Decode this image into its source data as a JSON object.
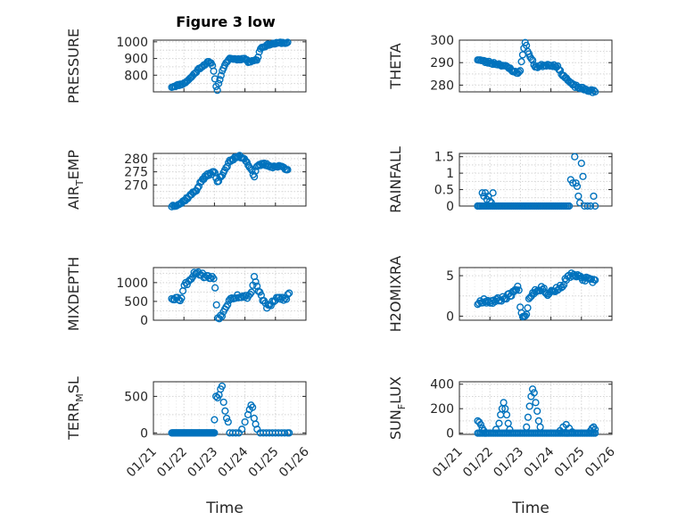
{
  "figure_title": "Figure 3 low",
  "x_axis_label": "Time",
  "marker_color": "#0072bd",
  "chart_data": [
    {
      "type": "scatter",
      "title": "Figure 3 low",
      "ylabel": {
        "text": "PRESSURE"
      },
      "xlim": [
        21,
        26
      ],
      "ylim": [
        700,
        1010
      ],
      "yticks": [
        800,
        900,
        1000
      ],
      "yticklabels": [
        "800",
        "900",
        "1000"
      ],
      "xticks": [],
      "xticklabels": [],
      "grid": true,
      "anchors": [
        [
          21.6,
          730
        ],
        [
          21.8,
          740
        ],
        [
          22.0,
          750
        ],
        [
          22.2,
          780
        ],
        [
          22.5,
          840
        ],
        [
          22.8,
          880
        ],
        [
          22.95,
          860
        ],
        [
          23.0,
          790
        ],
        [
          23.05,
          740
        ],
        [
          23.1,
          710
        ],
        [
          23.15,
          760
        ],
        [
          23.25,
          820
        ],
        [
          23.4,
          880
        ],
        [
          23.5,
          900
        ],
        [
          23.8,
          895
        ],
        [
          24.0,
          900
        ],
        [
          24.1,
          880
        ],
        [
          24.3,
          890
        ],
        [
          24.4,
          890
        ],
        [
          24.5,
          960
        ],
        [
          24.6,
          970
        ],
        [
          24.8,
          985
        ],
        [
          25.0,
          990
        ],
        [
          25.2,
          995
        ],
        [
          25.4,
          993
        ]
      ],
      "n": 95,
      "noise": 5,
      "seed": 11
    },
    {
      "type": "scatter",
      "ylabel": {
        "text": "THETA"
      },
      "xlim": [
        21,
        26
      ],
      "ylim": [
        277,
        300
      ],
      "yticks": [
        280,
        290,
        300
      ],
      "yticklabels": [
        "280",
        "290",
        "300"
      ],
      "xticks": [],
      "xticklabels": [],
      "grid": true,
      "anchors": [
        [
          21.6,
          291.5
        ],
        [
          21.8,
          290.5
        ],
        [
          22.0,
          290
        ],
        [
          22.4,
          289
        ],
        [
          22.7,
          287
        ],
        [
          22.9,
          285
        ],
        [
          23.0,
          287
        ],
        [
          23.1,
          296
        ],
        [
          23.15,
          299
        ],
        [
          23.2,
          297
        ],
        [
          23.3,
          293
        ],
        [
          23.5,
          288
        ],
        [
          23.8,
          289
        ],
        [
          24.0,
          289
        ],
        [
          24.2,
          288.5
        ],
        [
          24.3,
          286
        ],
        [
          24.5,
          283
        ],
        [
          24.7,
          280
        ],
        [
          25.0,
          278.5
        ],
        [
          25.3,
          277.5
        ],
        [
          25.45,
          277
        ]
      ],
      "n": 95,
      "noise": 0.6,
      "seed": 23
    },
    {
      "type": "scatter",
      "ylabel": {
        "text": "AIR",
        "sub": "T",
        "text2": "EMP"
      },
      "xlim": [
        21,
        26
      ],
      "ylim": [
        262,
        282
      ],
      "yticks": [
        270,
        275,
        280
      ],
      "yticklabels": [
        "270",
        "275",
        "280"
      ],
      "xticks": [],
      "xticklabels": [],
      "grid": true,
      "anchors": [
        [
          21.6,
          262
        ],
        [
          21.9,
          263
        ],
        [
          22.1,
          265
        ],
        [
          22.4,
          268
        ],
        [
          22.6,
          272
        ],
        [
          22.8,
          274
        ],
        [
          23.0,
          275
        ],
        [
          23.05,
          273
        ],
        [
          23.1,
          271
        ],
        [
          23.3,
          275
        ],
        [
          23.5,
          279
        ],
        [
          23.8,
          281
        ],
        [
          24.0,
          280
        ],
        [
          24.1,
          278
        ],
        [
          24.25,
          275
        ],
        [
          24.3,
          273
        ],
        [
          24.4,
          277
        ],
        [
          24.6,
          278
        ],
        [
          24.9,
          277
        ],
        [
          25.2,
          277
        ],
        [
          25.4,
          276
        ]
      ],
      "n": 95,
      "noise": 0.5,
      "seed": 37
    },
    {
      "type": "scatter",
      "ylabel": {
        "text": "RAINFALL"
      },
      "xlim": [
        21,
        26
      ],
      "ylim": [
        0,
        1.6
      ],
      "yticks": [
        0,
        0.5,
        1,
        1.5
      ],
      "yticklabels": [
        "0",
        "0.5",
        "1",
        "1.5"
      ],
      "xticks": [],
      "xticklabels": [],
      "grid": true,
      "anchors": [
        [
          21.6,
          0
        ],
        [
          24.6,
          0
        ]
      ],
      "n": 60,
      "noise": 0,
      "seed": 41,
      "extra": [
        [
          21.6,
          0
        ],
        [
          21.65,
          0
        ],
        [
          21.7,
          0
        ],
        [
          21.75,
          0.4
        ],
        [
          21.8,
          0.3
        ],
        [
          21.85,
          0.4
        ],
        [
          21.9,
          0.2
        ],
        [
          21.95,
          0.3
        ],
        [
          22.0,
          0.15
        ],
        [
          22.05,
          0.1
        ],
        [
          22.1,
          0.4
        ],
        [
          24.65,
          0.8
        ],
        [
          24.72,
          0.7
        ],
        [
          24.78,
          1.5
        ],
        [
          24.82,
          0.7
        ],
        [
          24.86,
          0.6
        ],
        [
          24.9,
          0.3
        ],
        [
          24.95,
          0.1
        ],
        [
          25.0,
          1.3
        ],
        [
          25.05,
          0.9
        ],
        [
          25.1,
          0
        ],
        [
          25.2,
          0
        ],
        [
          25.3,
          0
        ],
        [
          25.4,
          0.3
        ],
        [
          25.45,
          0
        ]
      ]
    },
    {
      "type": "scatter",
      "ylabel": {
        "text": "MIXDEPTH"
      },
      "xlim": [
        21,
        26
      ],
      "ylim": [
        0,
        1400
      ],
      "yticks": [
        0,
        500,
        1000
      ],
      "yticklabels": [
        "0",
        "500",
        "1000"
      ],
      "xticks": [],
      "xticklabels": [],
      "grid": true,
      "anchors": [
        [
          21.6,
          600
        ],
        [
          21.8,
          580
        ],
        [
          21.9,
          550
        ],
        [
          22.0,
          900
        ],
        [
          22.2,
          1100
        ],
        [
          22.4,
          1300
        ],
        [
          22.6,
          1200
        ],
        [
          22.8,
          1150
        ],
        [
          23.0,
          1100
        ],
        [
          23.05,
          600
        ],
        [
          23.1,
          50
        ],
        [
          23.3,
          200
        ],
        [
          23.5,
          600
        ],
        [
          23.8,
          650
        ],
        [
          24.0,
          600
        ],
        [
          24.2,
          700
        ],
        [
          24.3,
          1150
        ],
        [
          24.4,
          900
        ],
        [
          24.5,
          700
        ],
        [
          24.7,
          350
        ],
        [
          24.9,
          450
        ],
        [
          25.1,
          600
        ],
        [
          25.3,
          550
        ],
        [
          25.45,
          700
        ]
      ],
      "n": 85,
      "noise": 60,
      "seed": 53
    },
    {
      "type": "scatter",
      "ylabel": {
        "text": "H2OMIXRA"
      },
      "xlim": [
        21,
        26
      ],
      "ylim": [
        -0.5,
        6
      ],
      "yticks": [
        0,
        5
      ],
      "yticklabels": [
        "0",
        "5"
      ],
      "xticks": [],
      "xticklabels": [],
      "grid": true,
      "anchors": [
        [
          21.6,
          1.6
        ],
        [
          21.8,
          2.0
        ],
        [
          22.0,
          1.8
        ],
        [
          22.3,
          2.0
        ],
        [
          22.6,
          2.5
        ],
        [
          22.85,
          3.2
        ],
        [
          22.95,
          3.6
        ],
        [
          23.0,
          0.6
        ],
        [
          23.1,
          0.1
        ],
        [
          23.2,
          0.3
        ],
        [
          23.3,
          2.5
        ],
        [
          23.5,
          3.2
        ],
        [
          23.7,
          3.5
        ],
        [
          23.9,
          2.8
        ],
        [
          24.1,
          3.2
        ],
        [
          24.3,
          3.5
        ],
        [
          24.5,
          4.5
        ],
        [
          24.7,
          5.2
        ],
        [
          24.9,
          4.8
        ],
        [
          25.1,
          4.6
        ],
        [
          25.3,
          4.4
        ],
        [
          25.45,
          4.2
        ]
      ],
      "n": 95,
      "noise": 0.3,
      "seed": 67
    },
    {
      "type": "scatter",
      "ylabel": {
        "text": "TERR",
        "sub": "M",
        "text2": "SL"
      },
      "xlim": [
        21,
        26
      ],
      "ylim": [
        -20,
        700
      ],
      "yticks": [
        0,
        500
      ],
      "yticklabels": [
        "0",
        "500"
      ],
      "xticks": [
        21,
        22,
        23,
        24,
        25,
        26
      ],
      "xticklabels": [
        "01/21",
        "01/22",
        "01/23",
        "01/24",
        "01/25",
        "01/26"
      ],
      "grid": true,
      "anchors": [
        [
          21.6,
          0
        ],
        [
          23.0,
          0
        ]
      ],
      "n": 70,
      "noise": 0,
      "seed": 71,
      "extra": [
        [
          23.05,
          500
        ],
        [
          23.1,
          480
        ],
        [
          23.15,
          520
        ],
        [
          23.2,
          600
        ],
        [
          23.25,
          640
        ],
        [
          23.3,
          420
        ],
        [
          23.35,
          300
        ],
        [
          23.4,
          200
        ],
        [
          23.0,
          180
        ],
        [
          23.45,
          150
        ],
        [
          23.5,
          0
        ],
        [
          23.6,
          0
        ],
        [
          23.7,
          0
        ],
        [
          23.8,
          0
        ],
        [
          23.9,
          50
        ],
        [
          24.0,
          150
        ],
        [
          24.1,
          250
        ],
        [
          24.15,
          320
        ],
        [
          24.2,
          380
        ],
        [
          24.25,
          350
        ],
        [
          24.3,
          200
        ],
        [
          24.35,
          120
        ],
        [
          24.4,
          50
        ],
        [
          24.5,
          0
        ],
        [
          24.6,
          0
        ],
        [
          24.7,
          0
        ],
        [
          24.8,
          0
        ],
        [
          24.9,
          0
        ],
        [
          25.0,
          0
        ],
        [
          25.1,
          0
        ],
        [
          25.2,
          0
        ],
        [
          25.3,
          0
        ],
        [
          25.4,
          0
        ],
        [
          25.45,
          0
        ]
      ]
    },
    {
      "type": "scatter",
      "ylabel": {
        "text": "SUN",
        "sub": "F",
        "text2": "LUX"
      },
      "xlim": [
        21,
        26
      ],
      "ylim": [
        -10,
        420
      ],
      "yticks": [
        0,
        200,
        400
      ],
      "yticklabels": [
        "0",
        "200",
        "400"
      ],
      "xticks": [
        21,
        22,
        23,
        24,
        25,
        26
      ],
      "xticklabels": [
        "01/21",
        "01/22",
        "01/23",
        "01/24",
        "01/25",
        "01/26"
      ],
      "grid": true,
      "anchors": [
        [
          21.6,
          0
        ],
        [
          25.45,
          0
        ]
      ],
      "n": 80,
      "noise": 0,
      "seed": 83,
      "extra": [
        [
          21.6,
          100
        ],
        [
          21.65,
          90
        ],
        [
          21.7,
          70
        ],
        [
          21.75,
          40
        ],
        [
          21.8,
          20
        ],
        [
          21.85,
          0
        ],
        [
          22.2,
          30
        ],
        [
          22.3,
          80
        ],
        [
          22.35,
          150
        ],
        [
          22.4,
          200
        ],
        [
          22.45,
          250
        ],
        [
          22.5,
          200
        ],
        [
          22.55,
          150
        ],
        [
          22.6,
          80
        ],
        [
          22.65,
          30
        ],
        [
          23.2,
          50
        ],
        [
          23.25,
          130
        ],
        [
          23.3,
          220
        ],
        [
          23.35,
          300
        ],
        [
          23.4,
          360
        ],
        [
          23.45,
          330
        ],
        [
          23.5,
          250
        ],
        [
          23.55,
          180
        ],
        [
          23.6,
          100
        ],
        [
          23.65,
          50
        ],
        [
          24.3,
          20
        ],
        [
          24.4,
          50
        ],
        [
          24.5,
          70
        ],
        [
          24.6,
          40
        ],
        [
          24.7,
          10
        ],
        [
          25.3,
          20
        ],
        [
          25.35,
          40
        ],
        [
          25.4,
          50
        ],
        [
          25.45,
          30
        ]
      ]
    }
  ]
}
